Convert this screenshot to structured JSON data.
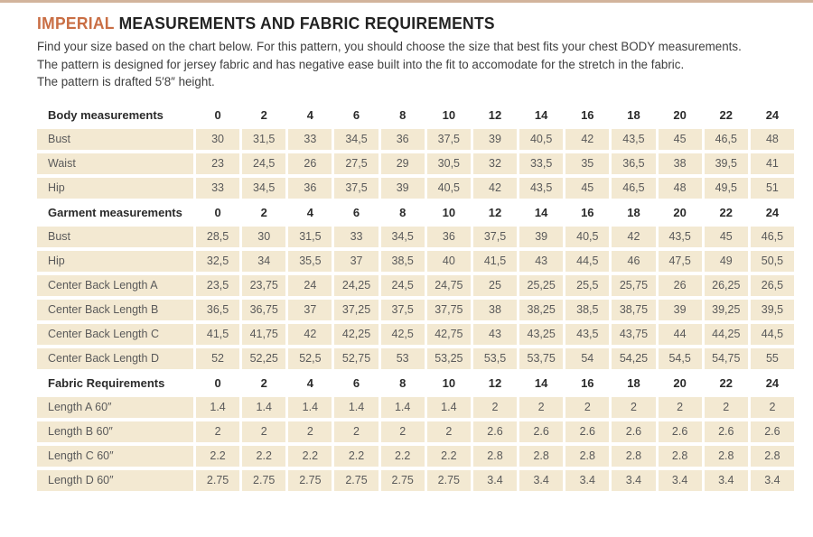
{
  "colors": {
    "accent": "#c96e44",
    "topbar": "#d2b49c",
    "title": "#222222",
    "cell_bg": "#f3e9d2",
    "cell_text": "#5a5a5a",
    "header_text": "#2b2b2b"
  },
  "page": {
    "title_highlight": "IMPERIAL",
    "title_rest": " MEASUREMENTS AND FABRIC REQUIREMENTS",
    "intro_lines": [
      "Find your size based on the chart below. For this pattern, you should choose the size that best fits your chest BODY measurements.",
      "The pattern is designed for jersey fabric and has negative ease built into the fit to accomodate for the stretch in the fabric.",
      "The pattern is drafted 5′8″ height."
    ]
  },
  "sizes": [
    "0",
    "2",
    "4",
    "6",
    "8",
    "10",
    "12",
    "14",
    "16",
    "18",
    "20",
    "22",
    "24"
  ],
  "table": {
    "sections": [
      {
        "header": "Body measurements",
        "rows": [
          {
            "label": "Bust",
            "values": [
              "30",
              "31,5",
              "33",
              "34,5",
              "36",
              "37,5",
              "39",
              "40,5",
              "42",
              "43,5",
              "45",
              "46,5",
              "48"
            ]
          },
          {
            "label": "Waist",
            "values": [
              "23",
              "24,5",
              "26",
              "27,5",
              "29",
              "30,5",
              "32",
              "33,5",
              "35",
              "36,5",
              "38",
              "39,5",
              "41"
            ]
          },
          {
            "label": "Hip",
            "values": [
              "33",
              "34,5",
              "36",
              "37,5",
              "39",
              "40,5",
              "42",
              "43,5",
              "45",
              "46,5",
              "48",
              "49,5",
              "51"
            ]
          }
        ]
      },
      {
        "header": "Garment measurements",
        "rows": [
          {
            "label": "Bust",
            "values": [
              "28,5",
              "30",
              "31,5",
              "33",
              "34,5",
              "36",
              "37,5",
              "39",
              "40,5",
              "42",
              "43,5",
              "45",
              "46,5"
            ]
          },
          {
            "label": "Hip",
            "values": [
              "32,5",
              "34",
              "35,5",
              "37",
              "38,5",
              "40",
              "41,5",
              "43",
              "44,5",
              "46",
              "47,5",
              "49",
              "50,5"
            ]
          },
          {
            "label": "Center Back Length A",
            "values": [
              "23,5",
              "23,75",
              "24",
              "24,25",
              "24,5",
              "24,75",
              "25",
              "25,25",
              "25,5",
              "25,75",
              "26",
              "26,25",
              "26,5"
            ]
          },
          {
            "label": "Center Back Length B",
            "values": [
              "36,5",
              "36,75",
              "37",
              "37,25",
              "37,5",
              "37,75",
              "38",
              "38,25",
              "38,5",
              "38,75",
              "39",
              "39,25",
              "39,5"
            ]
          },
          {
            "label": "Center Back Length C",
            "values": [
              "41,5",
              "41,75",
              "42",
              "42,25",
              "42,5",
              "42,75",
              "43",
              "43,25",
              "43,5",
              "43,75",
              "44",
              "44,25",
              "44,5"
            ]
          },
          {
            "label": "Center Back Length D",
            "values": [
              "52",
              "52,25",
              "52,5",
              "52,75",
              "53",
              "53,25",
              "53,5",
              "53,75",
              "54",
              "54,25",
              "54,5",
              "54,75",
              "55"
            ]
          }
        ]
      },
      {
        "header": "Fabric Requirements",
        "rows": [
          {
            "label": "Length A 60″",
            "values": [
              "1.4",
              "1.4",
              "1.4",
              "1.4",
              "1.4",
              "1.4",
              "2",
              "2",
              "2",
              "2",
              "2",
              "2",
              "2"
            ]
          },
          {
            "label": "Length B 60″",
            "values": [
              "2",
              "2",
              "2",
              "2",
              "2",
              "2",
              "2.6",
              "2.6",
              "2.6",
              "2.6",
              "2.6",
              "2.6",
              "2.6"
            ]
          },
          {
            "label": "Length C 60″",
            "values": [
              "2.2",
              "2.2",
              "2.2",
              "2.2",
              "2.2",
              "2.2",
              "2.8",
              "2.8",
              "2.8",
              "2.8",
              "2.8",
              "2.8",
              "2.8"
            ]
          },
          {
            "label": "Length D 60″",
            "values": [
              "2.75",
              "2.75",
              "2.75",
              "2.75",
              "2.75",
              "2.75",
              "3.4",
              "3.4",
              "3.4",
              "3.4",
              "3.4",
              "3.4",
              "3.4"
            ]
          }
        ]
      }
    ]
  }
}
